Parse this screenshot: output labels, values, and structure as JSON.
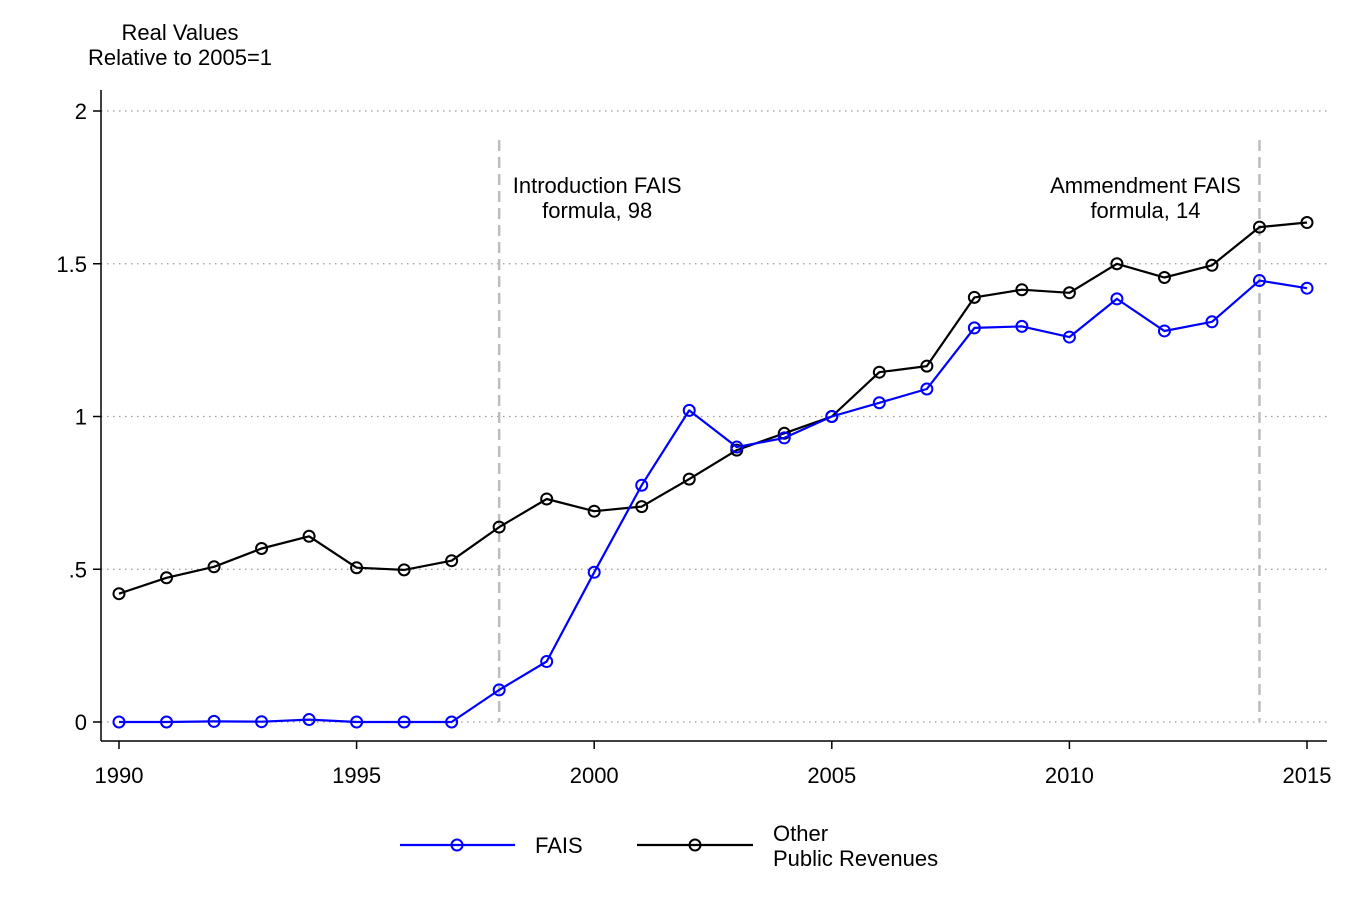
{
  "chart_data": {
    "type": "line",
    "ytitle_lines": [
      "Real Values",
      "Relative to 2005=1"
    ],
    "xlim": [
      1990,
      2015
    ],
    "ylim": [
      0,
      2
    ],
    "x_ticks": [
      1990,
      1995,
      2000,
      2005,
      2010,
      2015
    ],
    "x_tick_labels": [
      "1990",
      "1995",
      "2000",
      "2005",
      "2010",
      "2015"
    ],
    "y_ticks": [
      0,
      0.5,
      1,
      1.5,
      2
    ],
    "y_tick_labels": [
      "0",
      ".5",
      "1",
      "1.5",
      "2"
    ],
    "grid": "horizontal dotted",
    "legend_position": "bottom",
    "x": [
      1990,
      1991,
      1992,
      1993,
      1994,
      1995,
      1996,
      1997,
      1998,
      1999,
      2000,
      2001,
      2002,
      2003,
      2004,
      2005,
      2006,
      2007,
      2008,
      2009,
      2010,
      2011,
      2012,
      2013,
      2014,
      2015
    ],
    "series": [
      {
        "name": "FAIS",
        "color": "#0000ff",
        "values": [
          0.0,
          0.0,
          0.002,
          0.001,
          0.008,
          0.0,
          0.0,
          0.0,
          0.105,
          0.198,
          0.49,
          0.775,
          1.02,
          0.9,
          0.93,
          1.0,
          1.045,
          1.09,
          1.29,
          1.295,
          1.26,
          1.385,
          1.28,
          1.31,
          1.445,
          1.42
        ]
      },
      {
        "name": "Other Public Revenues",
        "legend_lines": [
          "Other",
          "Public Revenues"
        ],
        "color": "#000000",
        "values": [
          0.42,
          0.472,
          0.508,
          0.568,
          0.608,
          0.505,
          0.498,
          0.528,
          0.638,
          0.73,
          0.69,
          0.705,
          0.795,
          0.89,
          0.945,
          1.0,
          1.145,
          1.165,
          1.39,
          1.415,
          1.405,
          1.5,
          1.455,
          1.495,
          1.62,
          1.635
        ]
      }
    ],
    "vlines": [
      {
        "x": 1998,
        "label_lines": [
          "Introduction FAIS",
          "formula, 98"
        ]
      },
      {
        "x": 2014,
        "label_lines": [
          "Ammendment FAIS",
          "formula, 14"
        ]
      }
    ]
  }
}
